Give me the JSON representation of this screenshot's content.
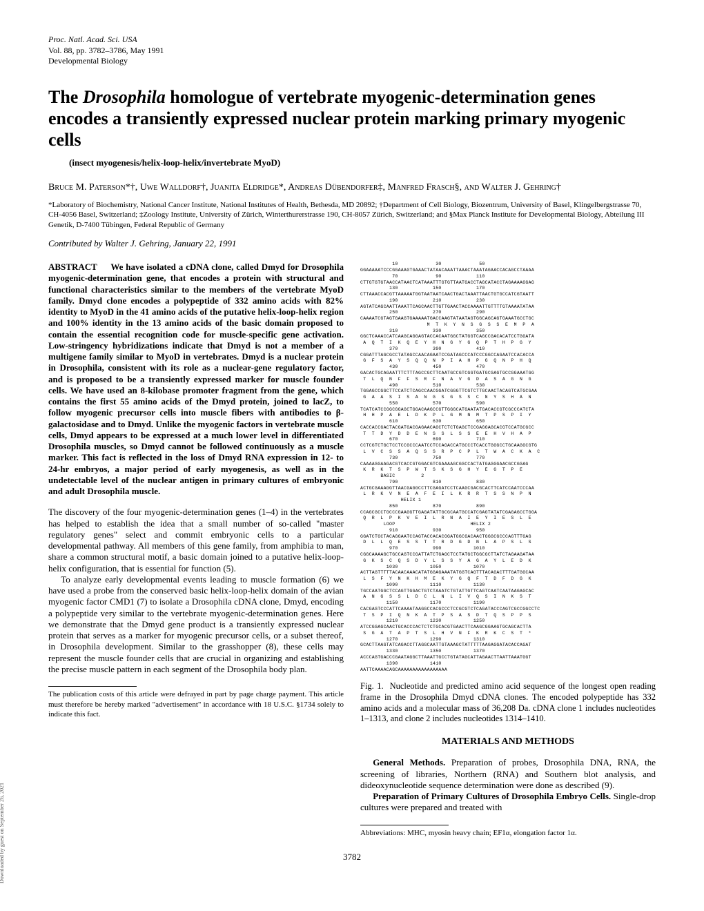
{
  "header": {
    "journal": "Proc. Natl. Acad. Sci. USA",
    "volpages": "Vol. 88, pp. 3782–3786, May 1991",
    "section": "Developmental Biology"
  },
  "title": {
    "line1": "The ",
    "species": "Drosophila",
    "line1b": " homologue of vertebrate myogenic-determination genes encodes a transiently expressed nuclear protein marking primary myogenic cells"
  },
  "subtitle": "(insect myogenesis/helix-loop-helix/invertebrate MyoD)",
  "authors": "Bruce M. Paterson*†, Uwe Walldorf†, Juanita Eldridge*, Andreas Dübendorfer‡, Manfred Frasch§, and Walter J. Gehring†",
  "affiliations": "*Laboratory of Biochemistry, National Cancer Institute, National Institutes of Health, Bethesda, MD 20892; †Department of Cell Biology, Biozentrum, University of Basel, Klingelbergstrasse 70, CH-4056 Basel, Switzerland; ‡Zoology Institute, University of Zürich, Winterthurerstrasse 190, CH-8057 Zürich, Switzerland; and §Max Planck Institute for Developmental Biology, Abteilung III Genetik, D-7400 Tübingen, Federal Republic of Germany",
  "contributed": "Contributed by Walter J. Gehring, January 22, 1991",
  "abstract_label": "ABSTRACT",
  "abstract": "We have isolated a cDNA clone, called Dmyd for Drosophila myogenic-determination gene, that encodes a protein with structural and functional characteristics similar to the members of the vertebrate MyoD family. Dmyd clone encodes a polypeptide of 332 amino acids with 82% identity to MyoD in the 41 amino acids of the putative helix-loop-helix region and 100% identity in the 13 amino acids of the basic domain proposed to contain the essential recognition code for muscle-specific gene activation. Low-stringency hybridizations indicate that Dmyd is not a member of a multigene family similar to MyoD in vertebrates. Dmyd is a nuclear protein in Drosophila, consistent with its role as a nuclear-gene regulatory factor, and is proposed to be a transiently expressed marker for muscle founder cells. We have used an 8-kilobase promoter fragment from the gene, which contains the first 55 amino acids of the Dmyd protein, joined to lacZ, to follow myogenic precursor cells into muscle fibers with antibodies to β-galactosidase and to Dmyd. Unlike the myogenic factors in vertebrate muscle cells, Dmyd appears to be expressed at a much lower level in differentiated Drosophila muscles, so Dmyd cannot be followed continuously as a muscle marker. This fact is reflected in the loss of Dmyd RNA expression in 12- to 24-hr embryos, a major period of early myogenesis, as well as in the undetectable level of the nuclear antigen in primary cultures of embryonic and adult Drosophila muscle.",
  "body1": "The discovery of the four myogenic-determination genes (1–4) in the vertebrates has helped to establish the idea that a small number of so-called \"master regulatory genes\" select and commit embryonic cells to a particular developmental pathway. All members of this gene family, from amphibia to man, share a common structural motif, a basic domain joined to a putative helix-loop-helix configuration, that is essential for function (5).",
  "body2": "To analyze early developmental events leading to muscle formation (6) we have used a probe from the conserved basic helix-loop-helix domain of the avian myogenic factor CMD1 (7) to isolate a Drosophila cDNA clone, Dmyd, encoding a polypeptide very similar to the vertebrate myogenic-determination genes. Here we demonstrate that the Dmyd gene product is a transiently expressed nuclear protein that serves as a marker for myogenic precursor cells, or a subset thereof, in Drosophila development. Similar to the grasshopper (8), these cells may represent the muscle founder cells that are crucial in organizing and establishing the precise muscle pattern in each segment of the Drosophila body plan.",
  "footnote_left": "The publication costs of this article were defrayed in part by page charge payment. This article must therefore be hereby marked \"advertisement\" in accordance with 18 U.S.C. §1734 solely to indicate this fact.",
  "sequence": "           10             30             50\nGGAAAAATCCCGGAAAGTGAAACTATAACAAATTAAACTAAATAGAACCACAGCCTAAAA\n           70             90            110\nCTTGTGTGTAACCATAACTCATAAATTTGTGTTAATGACCTAGCATACCTAGAAAAGGAG\n          130            150            170\nCTTAAACCACGTTAAAAATGGTAATAATCAACTGACTAAATTAACTGTGCCATCGTAATT\n          190            210            230\nAGTATCAGCAATTAAATTCAGCAACTTGTTGAACTACCAAAATTGTTTTGTAAAATATAA\n          250            270            290\nCAAAATCGTAGTGAAGTGAAAAATGACCAAGTATAATAGTGGCAGCAGTGAAATGCCTGC\n                       M  T  K  Y  N  S  G  S  S  E  M  P  A\n          310            330            350\nGGCTCAAACCATCAAGCAGGAGTACCACAATGGCTATGGTCAGCCGACACATCCTGGATA\n A  Q  T  I  K  Q  E  Y  H  N  G  Y  G  Q  P  T  H  P  G  Y\n          370            390            410\nCGGATTTAGCGCCTATAGCCAACAGAATCCGATAGCCCATCCCGGCCAGAATCCACACCA\n G  F  S  A  Y  S  Q  Q  N  P  I  A  H  P  G  Q  N  P  H  Q\n          430            450            470\nGACACTGCAGAATTTCTTTAGCCGCTTCAATGCCGTCGGTGATGCGAGTGCCGGAAATGG\n T  L  Q  N  F  F  S  R  F  N  A  V  G  D  A  S  A  G  N  G\n          490            510            530\nTGGAGCCGGCTTCCATCTCAGCCAACGGATCGGGTTCGTCTTGCAACTACAGTCATGCGAA\n G  A  A  S  I  S  A  N  G  S  G  S  S  C  N  Y  S  H  A  N\n          550            570            590\nTCATCATCCGGCGGAGCTGGACAAGCCGTTGGGCATGAATATGACACCGTCGCCCATCTA\n H  H  P  A  E  L  D  K  P  L  G  M  N  M  T  P  S  P  I  Y\n          610            630            650\nCACCACCGACTACGATGACGAGAACAGCTCTCTGAGCTCCGAGGAGCACGTCCATGCGCC\n T  T  D  Y  D  D  E  N  S  S  L  S  S  E  E  H  V  H  A  P\n          670            690            710\nCCTCGTCTGCTCCTCCGCCCAATCCTCCAGACCATGCCCTCACCTGGGCCTGCAAGGCGTG\n L  V  C  S  S  A  Q  S  S  R  P  C  P  L  T  W  A  C  K  A  C\n          730            750            770\nCAAAAGGAAGACGTCACCGTGGACGTCGAAAAGCGGCCACTATGAGGGAACGCCGGAG\n K  R  K  T  S  P  W  T  S  K  S  G  H  Y  E  G  T  P  E\n       BASIC         2\n          790            810            830\nACTGCGAAAGGTTAACGAGGCCTTCGAGATCCTCAAGCGACGCACTTCATCCAATCCCAA\n L  R  K  V  N  E  A  F  E  I  L  K  R  R  T  S  S  N  P  N\n              HELIX 1\n          850            870            890\nCCAGCGCCTGCCCGAAGGTTGAGATATTGCGCAATGCCATCGAGTATATCGAGAGCCTGGA\n Q  R  L  P  K  V  E  I  L  R  N  A  I  E  Y  I  E  S  L  E\n        LOOP                          HELIX 2\n          910            930            950\nGGATCTGCTACAGGAATCCAGTACCACACGGATGGCGACAACTGGGCGCCCAGTTTGAG\n D  L  L  Q  E  S  S  T  T  R  D  G  D  N  L  A  P  S  L  S\n          970            990           1010\nCGGCAAAAGCTGCCAGTCCGATTATCTGAGCTCCTATGCTGGCGCTTATCTAGAAGATAA\n G  K  S  C  Q  S  D  Y  L  S  S  Y  A  G  A  Y  L  E  D  K\n         1030           1050           1070\nACTTAGTTTTTACAACAAACATATGGAGAAATATGGTCAGTTTACAGACTTTGATGGCAA\n L  S  F  Y  N  K  H  M  E  K  Y  G  Q  F  T  D  F  D  G  K\n         1090           1110           1130\nTGCCAATGGCTCCAGTTGGACTGTCTAAATCTGTATTGTTCAGTCAATCAATAAGAGCAC\n A  N  G  S  S  L  D  C  L  N  L  I  V  Q  S  I  N  K  S  T\n         1150           1170           1190\nCACGAGTCCCATTCAAAATAAGGCCACGCCCTCCGCGTCTCAGATACCCAGTCGCCGGCCTC\n T  S  P  I  Q  N  K  A  T  P  S  A  S  D  T  Q  S  P  P  S\n         1210           1230           1250\nATCCGGAGCAACTGCACCCACTCTCTGCACGTGAACTTCAAGCGGAAGTGCAGCACTTA\n S  G  A  T  A  P  T  S  L  H  V  N  F  K  R  K  C  S  T  *\n         1270           1290           1310\nGCACTTAAGTATCAGACCTTAGGCAATTGTAAAGCTATTTTTAAGAGGATACACCAGAT\n         1330           1350           1370\nACCCAGTGACCCGAATAGGCTTAAATTGCCTGTATAGCATTAGAACTTAATTAAATGGT\n         1390           1410\nAATTCAAAACAGCAAAAAAAAAAAAAAAAA",
  "fig_caption_label": "Fig. 1.",
  "fig_caption": "Nucleotide and predicted amino acid sequence of the longest open reading frame in the Drosophila Dmyd cDNA clones. The encoded polypeptide has 332 amino acids and a molecular mass of 36,208 Da. cDNA clone 1 includes nucleotides 1–1313, and clone 2 includes nucleotides 1314–1410.",
  "methods_head": "MATERIALS AND METHODS",
  "methods1_label": "General Methods.",
  "methods1": "Preparation of probes, Drosophila DNA, RNA, the screening of libraries, Northern (RNA) and Southern blot analysis, and dideoxynucleotide sequence determination were done as described (9).",
  "methods2_label": "Preparation of Primary Cultures of Drosophila Embryo Cells.",
  "methods2": "Single-drop cultures were prepared and treated with",
  "footnote_right": "Abbreviations: MHC, myosin heavy chain; EF1α, elongation factor 1α.",
  "page_number": "3782",
  "side_note": "Downloaded by guest on September 26, 2021"
}
